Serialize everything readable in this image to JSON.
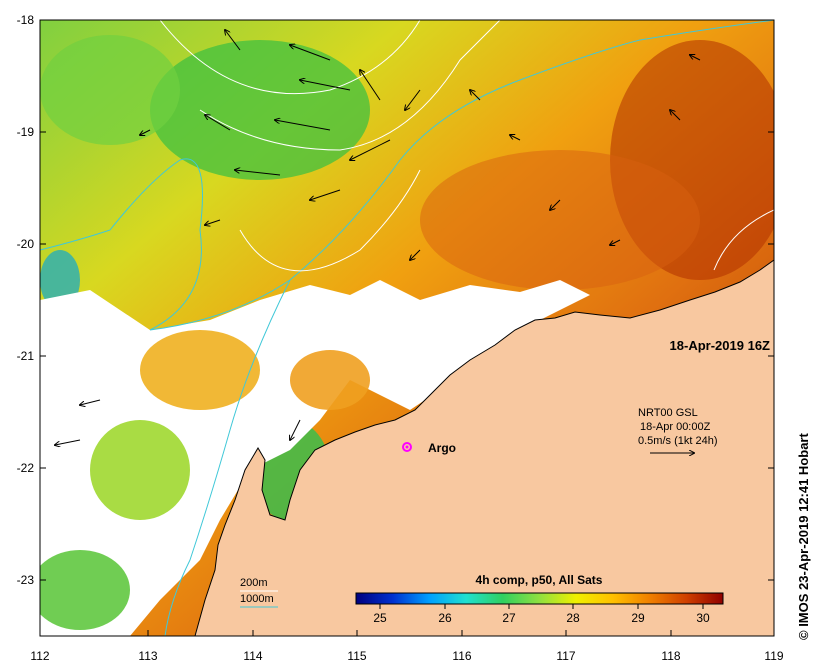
{
  "map": {
    "title": "18-Apr-2019 16Z",
    "credit": "© IMOS 23-Apr-2019 12:41 Hobart",
    "argo_label": "Argo",
    "y_ticks": [
      "-18",
      "-19",
      "-20",
      "-21",
      "-22",
      "-23"
    ],
    "x_ticks": [
      "112",
      "113",
      "114",
      "115",
      "116",
      "117",
      "118",
      "119"
    ],
    "current_info": {
      "line1": "NRT00 GSL",
      "line2": "18-Apr 00:00Z",
      "line3": "0.5m/s (1kt 24h)"
    },
    "isobaths": {
      "label_200": "200m",
      "label_1000": "1000m",
      "color_200": "#ffffff",
      "color_1000": "#40c8d8"
    },
    "colorbar": {
      "title": "4h comp, p50, All Sats",
      "labels": [
        "25",
        "26",
        "27",
        "28",
        "29",
        "30"
      ],
      "stops": [
        "#00007f",
        "#0030d0",
        "#00a0ff",
        "#20e0d0",
        "#30d060",
        "#90e040",
        "#f0f000",
        "#ffc000",
        "#f08000",
        "#d04000",
        "#900000"
      ]
    },
    "colors": {
      "land": "#f8c8a0",
      "cloud": "#ffffff",
      "argo_marker": "#ff00ff"
    }
  }
}
